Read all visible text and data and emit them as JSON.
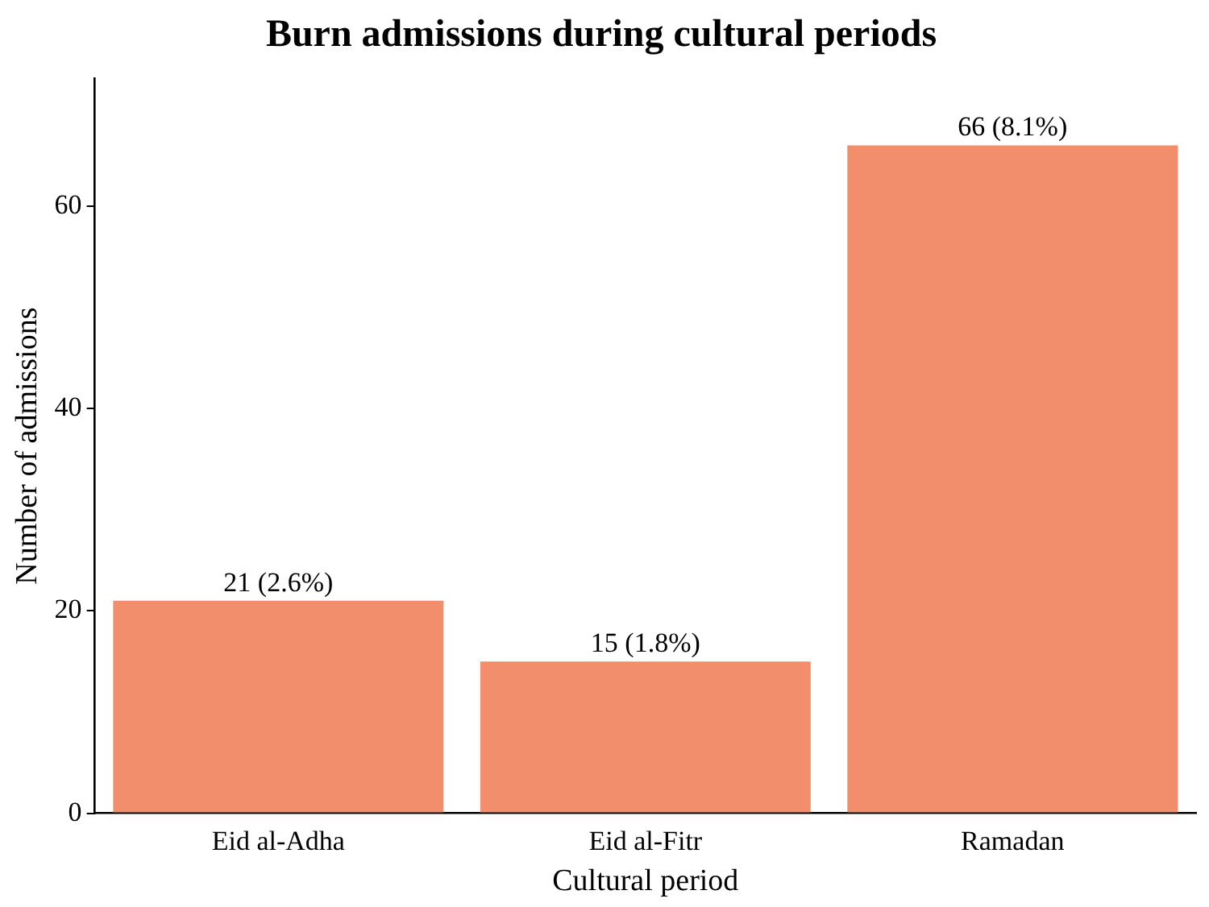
{
  "chart_data": {
    "type": "bar",
    "title": "Burn admissions during cultural periods",
    "xlabel": "Cultural period",
    "ylabel": "Number of admissions",
    "categories": [
      "Eid al-Adha",
      "Eid al-Fitr",
      "Ramadan"
    ],
    "values": [
      21,
      15,
      66
    ],
    "value_labels": [
      "21 (2.6%)",
      "15 (1.8%)",
      "66 (8.1%)"
    ],
    "color": "#f28e6c",
    "ylim": [
      0,
      72.6
    ],
    "yticks": [
      0,
      20,
      40,
      60
    ],
    "grid": false,
    "legend": false
  }
}
